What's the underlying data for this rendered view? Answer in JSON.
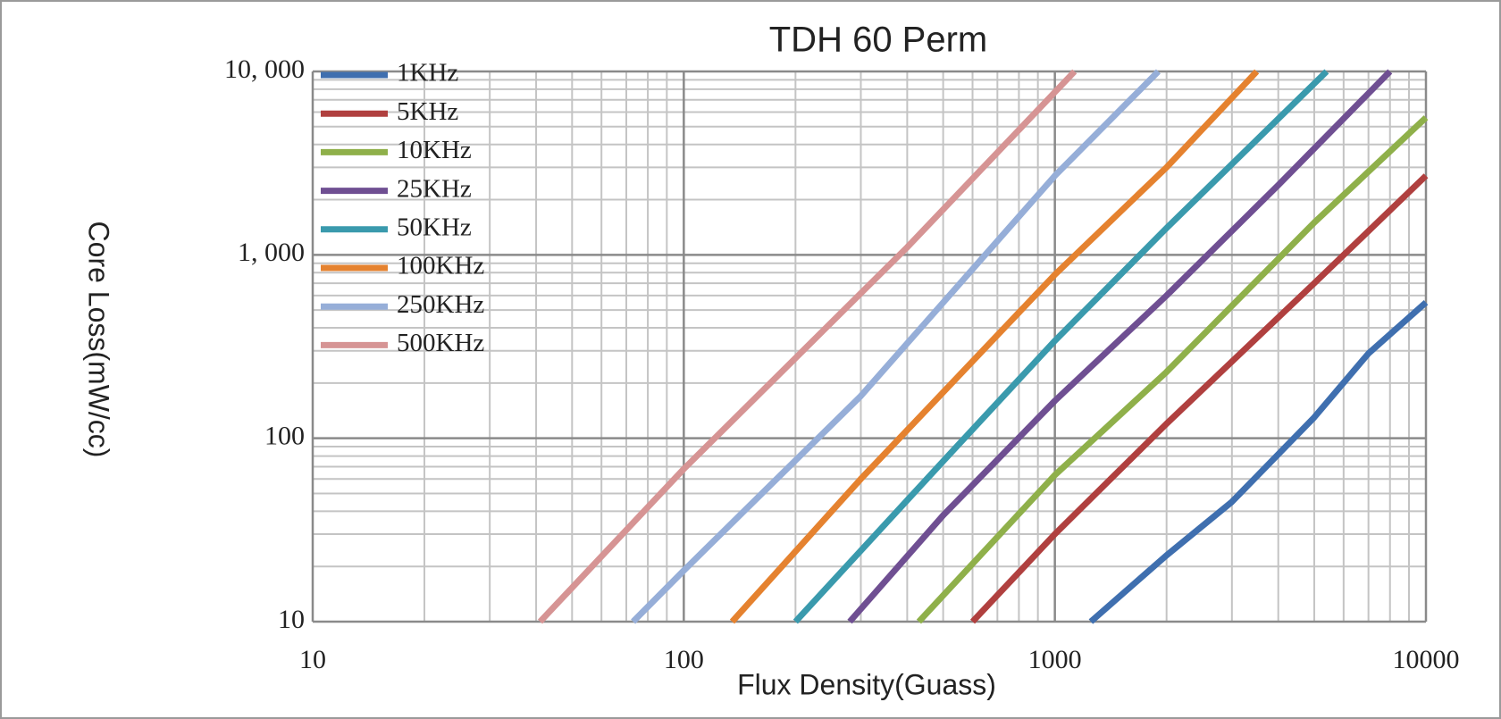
{
  "chart_data": {
    "type": "line",
    "title": "TDH 60 Perm",
    "x_label": "Flux Density(Guass)",
    "y_label": "Core Loss(mW/cc)",
    "log_x": true,
    "log_y": true,
    "grid": true,
    "legend": "top-left",
    "xlim": [
      10,
      10000
    ],
    "ylim": [
      10,
      10000
    ],
    "xticks": [
      10,
      100,
      1000,
      10000
    ],
    "yticks": [
      10,
      100,
      {
        "value": 1000,
        "label": "1, 000"
      },
      {
        "value": 10000,
        "label": "10, 000"
      }
    ],
    "xminorticks": [
      20,
      30,
      40,
      50,
      60,
      70,
      80,
      90,
      200,
      300,
      400,
      500,
      600,
      700,
      800,
      900,
      2000,
      3000,
      4000,
      5000,
      6000,
      7000,
      8000,
      9000
    ],
    "yminorticks": [
      20,
      30,
      40,
      50,
      60,
      70,
      80,
      90,
      200,
      300,
      400,
      500,
      600,
      700,
      800,
      900,
      2000,
      3000,
      4000,
      5000,
      6000,
      7000,
      8000,
      9000
    ],
    "series": [
      {
        "name": "1KHz",
        "color": "#3f6faf",
        "x": [
          1250,
          2000,
          3000,
          5000,
          7000,
          10000
        ],
        "values": [
          10,
          23,
          45,
          130,
          290,
          550
        ]
      },
      {
        "name": "5KHz",
        "color": "#b0403f",
        "x": [
          600,
          1000,
          2000,
          5000,
          10000
        ],
        "values": [
          10,
          30,
          120,
          700,
          2700
        ]
      },
      {
        "name": "10KHz",
        "color": "#8fb04a",
        "x": [
          430,
          1000,
          2000,
          5000,
          10000
        ],
        "values": [
          10,
          63,
          230,
          1500,
          5600
        ]
      },
      {
        "name": "25KHz",
        "color": "#6f4f92",
        "x": [
          280,
          500,
          1000,
          2000,
          4000,
          8000
        ],
        "values": [
          10,
          38,
          160,
          600,
          2400,
          10000
        ]
      },
      {
        "name": "50KHz",
        "color": "#3a9aad",
        "x": [
          200,
          500,
          1000,
          2000,
          5400
        ],
        "values": [
          10,
          75,
          340,
          1400,
          10000
        ]
      },
      {
        "name": "100KHz",
        "color": "#e5822f",
        "x": [
          135,
          300,
          1000,
          2000,
          3500
        ],
        "values": [
          10,
          60,
          780,
          3000,
          10000
        ]
      },
      {
        "name": "250KHz",
        "color": "#96aed8",
        "x": [
          73,
          100,
          300,
          1000,
          1900
        ],
        "values": [
          10,
          19,
          170,
          2700,
          10000
        ]
      },
      {
        "name": "500KHz",
        "color": "#d69494",
        "x": [
          41,
          100,
          400,
          1130
        ],
        "values": [
          10,
          68,
          1100,
          10000
        ]
      }
    ]
  }
}
